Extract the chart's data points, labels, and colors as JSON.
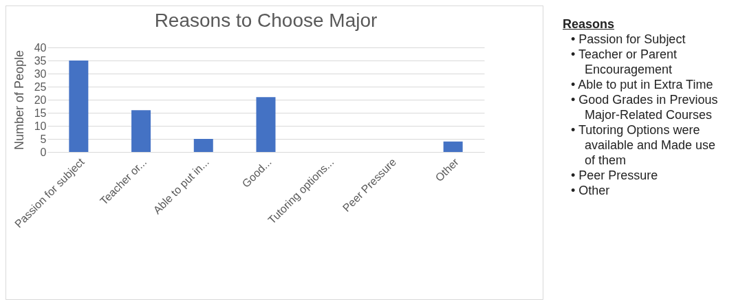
{
  "chart_data": {
    "type": "bar",
    "title": "Reasons to Choose Major",
    "ylabel": "Number of People",
    "categories": [
      "Passion for subject",
      "Teacher or...",
      "Able to put in...",
      "Good...",
      "Tutoring options...",
      "Peer Pressure",
      "Other"
    ],
    "values": [
      35,
      16,
      5,
      21,
      0,
      0,
      4
    ],
    "color": "#4472c4",
    "ylim": [
      0,
      40
    ],
    "yticks": [
      0,
      5,
      10,
      15,
      20,
      25,
      30,
      35,
      40
    ],
    "grid": "y",
    "annotations": [
      "Reasons",
      "• Passion for Subject",
      "• Teacher or Parent Encouragement",
      "• Able to put in Extra Time",
      "• Good Grades in Previous Major-Related Courses",
      "• Tutoring Options were available and Made use of them",
      "• Peer Pressure",
      "• Other"
    ]
  }
}
